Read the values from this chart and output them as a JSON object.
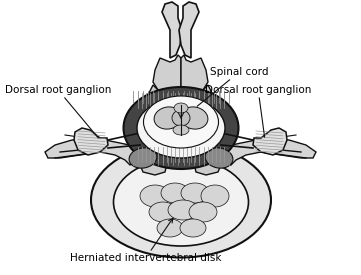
{
  "background_color": "#ffffff",
  "line_color": "#111111",
  "labels": {
    "dorsal_root_ganglion_left": "Dorsal root ganglion",
    "dorsal_root_ganglion_right": "Dorsal root ganglion",
    "spinal_cord": "Spinal cord",
    "herniated_disk": "Herniated intervertebral disk"
  },
  "fontsize": 7.5
}
